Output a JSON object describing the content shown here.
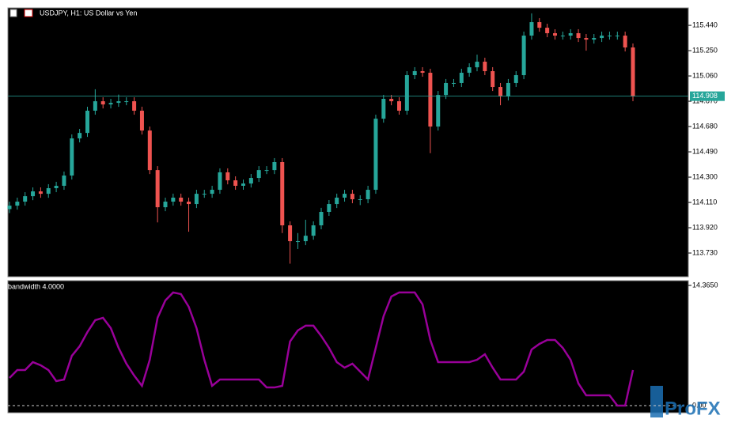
{
  "chart_data": [
    {
      "type": "candlestick",
      "title": "USDJPY, H1:  US Dollar vs Yen",
      "up_color": "#26a69a",
      "down_color": "#ef5350",
      "grid": false,
      "ylim": [
        113.552,
        115.571
      ],
      "yticks": [
        {
          "value": 115.44,
          "label": "115.440"
        },
        {
          "value": 115.25,
          "label": "115.250"
        },
        {
          "value": 115.06,
          "label": "115.060"
        },
        {
          "value": 114.87,
          "label": "114.870"
        },
        {
          "value": 114.68,
          "label": "114.680"
        },
        {
          "value": 114.49,
          "label": "114.490"
        },
        {
          "value": 114.3,
          "label": "114.300"
        },
        {
          "value": 114.11,
          "label": "114.110"
        },
        {
          "value": 113.92,
          "label": "113.920"
        },
        {
          "value": 113.73,
          "label": "113.730"
        }
      ],
      "current_price": 114.908,
      "current_price_color": "#26a69a",
      "open": [
        114.06,
        114.086,
        114.116,
        114.157,
        114.193,
        114.175,
        114.217,
        114.235,
        114.312,
        114.591,
        114.632,
        114.799,
        114.87,
        114.846,
        114.858,
        114.87,
        114.87,
        114.799,
        114.65,
        114.353,
        114.074,
        114.116,
        114.146,
        114.116,
        114.098,
        114.175,
        114.175,
        114.205,
        114.336,
        114.276,
        114.235,
        114.252,
        114.294,
        114.353,
        114.353,
        114.413,
        113.938,
        113.819,
        113.819,
        113.86,
        113.938,
        114.039,
        114.098,
        114.146,
        114.175,
        114.134,
        114.134,
        114.205,
        114.739,
        114.888,
        114.87,
        114.799,
        115.066,
        115.096,
        115.084,
        114.68,
        114.917,
        115.007,
        115.007,
        115.084,
        115.125,
        115.167,
        115.096,
        114.977,
        114.906,
        115.007,
        115.066,
        115.363,
        115.464,
        115.422,
        115.381,
        115.363,
        115.363,
        115.381,
        115.345,
        115.333,
        115.345,
        115.363,
        115.363,
        115.363,
        115.274
      ],
      "high": [
        114.116,
        114.146,
        114.187,
        114.223,
        114.223,
        114.247,
        114.265,
        114.342,
        114.621,
        114.662,
        114.829,
        114.96,
        114.9,
        114.888,
        114.92,
        114.9,
        114.9,
        114.829,
        114.68,
        114.383,
        114.146,
        114.176,
        114.176,
        114.146,
        114.205,
        114.205,
        114.235,
        114.366,
        114.366,
        114.306,
        114.282,
        114.324,
        114.383,
        114.383,
        114.443,
        114.443,
        113.968,
        113.88,
        113.98,
        113.968,
        114.069,
        114.128,
        114.176,
        114.205,
        114.205,
        114.164,
        114.235,
        114.769,
        114.918,
        114.918,
        114.9,
        115.096,
        115.126,
        115.126,
        115.114,
        114.947,
        115.037,
        115.037,
        115.114,
        115.155,
        115.22,
        115.197,
        115.126,
        115.007,
        115.037,
        115.096,
        115.393,
        115.53,
        115.494,
        115.452,
        115.411,
        115.393,
        115.411,
        115.411,
        115.375,
        115.375,
        115.393,
        115.393,
        115.393,
        115.393,
        115.304
      ],
      "low": [
        114.03,
        114.056,
        114.086,
        114.127,
        114.145,
        114.145,
        114.187,
        114.205,
        114.282,
        114.561,
        114.602,
        114.769,
        114.816,
        114.816,
        114.828,
        114.84,
        114.769,
        114.62,
        114.323,
        113.96,
        114.044,
        114.086,
        114.086,
        113.89,
        114.068,
        114.145,
        114.145,
        114.175,
        114.246,
        114.205,
        114.205,
        114.222,
        114.264,
        114.323,
        114.323,
        113.88,
        113.65,
        113.76,
        113.789,
        113.83,
        113.908,
        114.009,
        114.068,
        114.116,
        114.104,
        114.09,
        114.104,
        114.175,
        114.709,
        114.84,
        114.769,
        114.769,
        115.036,
        115.054,
        114.48,
        114.65,
        114.887,
        114.977,
        114.977,
        115.054,
        115.095,
        115.066,
        114.947,
        114.84,
        114.876,
        114.977,
        115.036,
        115.333,
        115.392,
        115.351,
        115.333,
        115.333,
        115.333,
        115.315,
        115.25,
        115.303,
        115.315,
        115.333,
        115.333,
        115.244,
        114.87
      ],
      "close": [
        114.086,
        114.116,
        114.157,
        114.193,
        114.175,
        114.217,
        114.235,
        114.312,
        114.591,
        114.632,
        114.799,
        114.87,
        114.846,
        114.858,
        114.87,
        114.87,
        114.799,
        114.65,
        114.353,
        114.074,
        114.116,
        114.146,
        114.116,
        114.098,
        114.175,
        114.175,
        114.205,
        114.336,
        114.276,
        114.235,
        114.252,
        114.294,
        114.353,
        114.353,
        114.413,
        113.938,
        113.819,
        113.819,
        113.86,
        113.938,
        114.039,
        114.098,
        114.146,
        114.175,
        114.134,
        114.134,
        114.205,
        114.739,
        114.888,
        114.87,
        114.799,
        115.066,
        115.096,
        115.084,
        114.68,
        114.917,
        115.007,
        115.007,
        115.084,
        115.125,
        115.167,
        115.096,
        114.977,
        114.906,
        115.007,
        115.066,
        115.363,
        115.464,
        115.422,
        115.381,
        115.363,
        115.363,
        115.381,
        115.345,
        115.333,
        115.345,
        115.363,
        115.363,
        115.363,
        115.274,
        114.908
      ]
    },
    {
      "type": "line",
      "title": "bandwidth 4.0000",
      "color": "#990099",
      "level_color": "#cccccc",
      "ylim": [
        -0.85,
        14.93
      ],
      "yticks": [
        {
          "value": 14.365,
          "label": "14.3650"
        },
        {
          "value": 0,
          "label": "0.00"
        }
      ],
      "values": [
        3.31,
        4.25,
        4.25,
        5.2,
        4.82,
        4.25,
        2.93,
        3.12,
        5.95,
        7.09,
        8.79,
        10.21,
        10.49,
        9.26,
        6.9,
        5.01,
        3.59,
        2.36,
        5.48,
        10.49,
        12.57,
        13.52,
        13.33,
        11.81,
        9.26,
        5.48,
        2.36,
        3.12,
        3.12,
        3.12,
        3.12,
        3.12,
        3.12,
        2.17,
        2.17,
        2.36,
        7.66,
        8.98,
        9.55,
        9.55,
        8.32,
        6.9,
        5.2,
        4.54,
        5.01,
        4.06,
        3.12,
        6.9,
        10.68,
        13.04,
        13.52,
        13.52,
        13.52,
        12.1,
        7.84,
        5.2,
        5.2,
        5.2,
        5.2,
        5.2,
        5.48,
        6.14,
        4.54,
        3.12,
        3.12,
        3.12,
        4.06,
        6.71,
        7.37,
        7.84,
        7.84,
        6.9,
        5.48,
        2.65,
        1.23,
        1.23,
        1.23,
        1.23,
        0,
        0,
        4.25
      ]
    }
  ],
  "watermark": "ProFX"
}
